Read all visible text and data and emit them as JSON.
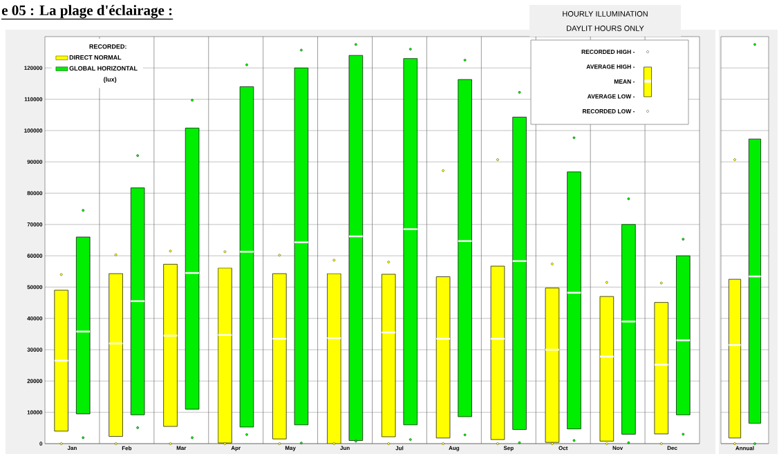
{
  "chart_data": [
    {
      "type": "box",
      "title": "e 05 : La plage d'éclairage :",
      "legend_title": "RECORDED:",
      "legend": "top left",
      "grid": true,
      "marker": "circle",
      "categories": [
        "Jan",
        "Feb",
        "Mar",
        "Apr",
        "May",
        "Jun",
        "Jul",
        "Aug",
        "Sep",
        "Oct",
        "Nov",
        "Dec"
      ],
      "ylim": [
        0,
        130000
      ],
      "yticks": [
        0,
        10000,
        20000,
        30000,
        40000,
        50000,
        60000,
        70000,
        80000,
        90000,
        100000,
        110000,
        120000
      ],
      "annotations": [
        "(lux)",
        "HOURLY ILLUMINATION",
        "DAYLIT HOURS ONLY",
        "RECORDED HIGH -",
        "AVERAGE HIGH -",
        "MEAN -",
        "AVERAGE LOW -",
        "RECORDED LOW -"
      ],
      "series": [
        {
          "name": "DIRECT NORMAL",
          "color": "#ffff00",
          "boxes": [
            {
              "low": 4000,
              "q1": 4000,
              "median": 26500,
              "q3": 49000,
              "high": 49000,
              "outliers": [
                0,
                54000
              ]
            },
            {
              "low": 2300,
              "q1": 2300,
              "median": 32000,
              "q3": 54300,
              "high": 54300,
              "outliers": [
                0,
                60300
              ]
            },
            {
              "low": 5500,
              "q1": 5500,
              "median": 34500,
              "q3": 57300,
              "high": 57300,
              "outliers": [
                0,
                61500
              ]
            },
            {
              "low": 200,
              "q1": 200,
              "median": 34700,
              "q3": 56100,
              "high": 56100,
              "outliers": [
                0,
                61300
              ]
            },
            {
              "low": 1500,
              "q1": 1500,
              "median": 33500,
              "q3": 54300,
              "high": 54300,
              "outliers": [
                0,
                60200
              ]
            },
            {
              "low": 0,
              "q1": 0,
              "median": 33700,
              "q3": 54300,
              "high": 54300,
              "outliers": [
                0,
                58600
              ]
            },
            {
              "low": 2200,
              "q1": 2200,
              "median": 35500,
              "q3": 54100,
              "high": 54100,
              "outliers": [
                0,
                58000
              ]
            },
            {
              "low": 1800,
              "q1": 1800,
              "median": 33500,
              "q3": 53300,
              "high": 53300,
              "outliers": [
                0,
                87200
              ]
            },
            {
              "low": 1300,
              "q1": 1300,
              "median": 33500,
              "q3": 56700,
              "high": 56700,
              "outliers": [
                0,
                90700
              ]
            },
            {
              "low": 400,
              "q1": 400,
              "median": 30000,
              "q3": 49700,
              "high": 49700,
              "outliers": [
                0,
                57400
              ]
            },
            {
              "low": 800,
              "q1": 800,
              "median": 27800,
              "q3": 47000,
              "high": 47000,
              "outliers": [
                0,
                51500
              ]
            },
            {
              "low": 3100,
              "q1": 3100,
              "median": 25200,
              "q3": 45100,
              "high": 45100,
              "outliers": [
                0,
                51300
              ]
            }
          ]
        },
        {
          "name": "GLOBAL HORIZONTAL",
          "color": "#00ee00",
          "boxes": [
            {
              "low": 9500,
              "q1": 9500,
              "median": 35800,
              "q3": 66000,
              "high": 66000,
              "outliers": [
                1900,
                74500
              ]
            },
            {
              "low": 9200,
              "q1": 9200,
              "median": 45500,
              "q3": 81700,
              "high": 81700,
              "outliers": [
                5100,
                92000
              ]
            },
            {
              "low": 11000,
              "q1": 11000,
              "median": 54500,
              "q3": 100800,
              "high": 100800,
              "outliers": [
                1900,
                109700
              ]
            },
            {
              "low": 5300,
              "q1": 5300,
              "median": 61300,
              "q3": 114000,
              "high": 114000,
              "outliers": [
                2900,
                121000
              ]
            },
            {
              "low": 6000,
              "q1": 6000,
              "median": 64300,
              "q3": 120000,
              "high": 120000,
              "outliers": [
                200,
                125700
              ]
            },
            {
              "low": 1000,
              "q1": 1000,
              "median": 66200,
              "q3": 124000,
              "high": 124000,
              "outliers": [
                800,
                127500
              ]
            },
            {
              "low": 6000,
              "q1": 6000,
              "median": 68500,
              "q3": 123000,
              "high": 123000,
              "outliers": [
                1300,
                126000
              ]
            },
            {
              "low": 8600,
              "q1": 8600,
              "median": 64700,
              "q3": 116300,
              "high": 116300,
              "outliers": [
                2800,
                122500
              ]
            },
            {
              "low": 4500,
              "q1": 4500,
              "median": 58300,
              "q3": 104300,
              "high": 104300,
              "outliers": [
                300,
                112200
              ]
            },
            {
              "low": 4700,
              "q1": 4700,
              "median": 48200,
              "q3": 86800,
              "high": 86800,
              "outliers": [
                1000,
                97700
              ]
            },
            {
              "low": 3000,
              "q1": 3000,
              "median": 39000,
              "q3": 70000,
              "high": 70000,
              "outliers": [
                300,
                78200
              ]
            },
            {
              "low": 9200,
              "q1": 9200,
              "median": 33000,
              "q3": 60000,
              "high": 60000,
              "outliers": [
                3000,
                65300
              ]
            }
          ]
        }
      ]
    },
    {
      "type": "box",
      "grid": true,
      "marker": "circle",
      "tick_labels": "x",
      "categories": [
        "Annual"
      ],
      "ylim": [
        0,
        130000
      ],
      "yticks": [
        0,
        10000,
        20000,
        30000,
        40000,
        50000,
        60000,
        70000,
        80000,
        90000,
        100000,
        110000,
        120000
      ],
      "series": [
        {
          "color": "#ffff00",
          "boxes": [
            {
              "low": 1800,
              "q1": 1800,
              "median": 31500,
              "q3": 52500,
              "high": 52500,
              "outliers": [
                0,
                90700
              ]
            }
          ]
        },
        {
          "color": "#00ee00",
          "boxes": [
            {
              "low": 6500,
              "q1": 6500,
              "median": 53400,
              "q3": 97300,
              "high": 97300,
              "outliers": [
                0,
                127500
              ]
            }
          ]
        }
      ]
    }
  ]
}
